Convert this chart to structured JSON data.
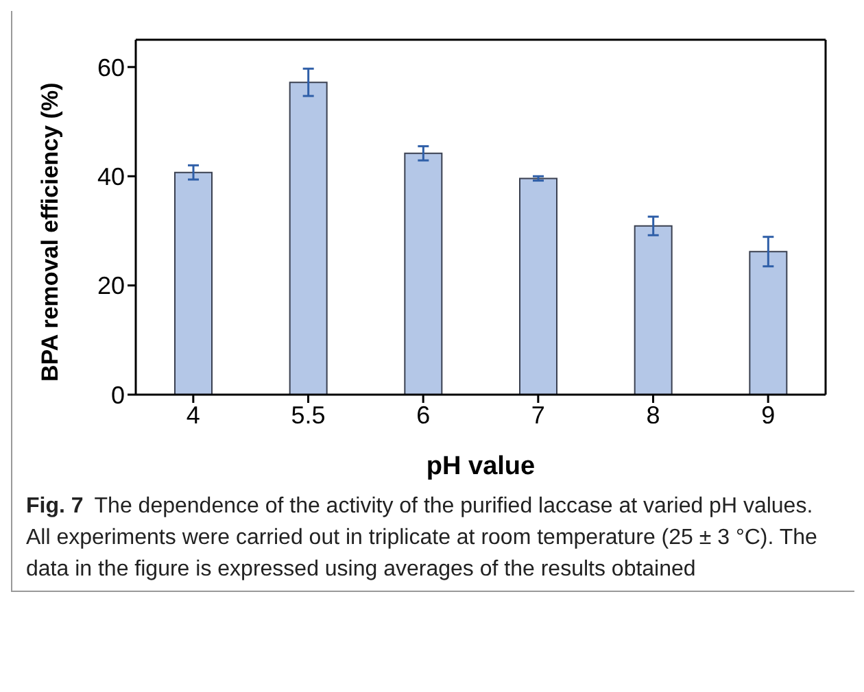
{
  "chart_data": {
    "type": "bar",
    "xlabel": "pH value",
    "ylabel": "BPA removal efficiency (%)",
    "categories": [
      "4",
      "5.5",
      "6",
      "7",
      "8",
      "9"
    ],
    "values": [
      40.7,
      57.2,
      44.2,
      39.6,
      30.9,
      26.2
    ],
    "errors": [
      1.3,
      2.5,
      1.3,
      0.4,
      1.7,
      2.7
    ],
    "color": "#b4c7e7",
    "ylim": [
      0,
      65
    ],
    "yticks": [
      0,
      20,
      40,
      60
    ],
    "grid": false,
    "annotations": [
      "Fig. 7",
      "The dependence of the activity of the purified laccase at varied pH values. All experiments were carried out in triplicate at room temperature (25 ± 3 °C). The data in the figure is expressed using averages of the results obtained"
    ]
  }
}
